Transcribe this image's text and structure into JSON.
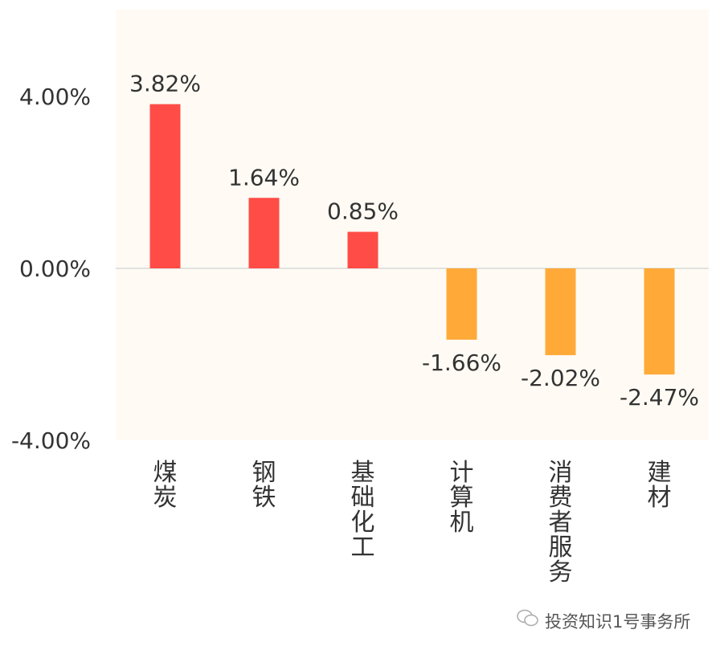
{
  "chart_data": {
    "type": "bar",
    "title": "",
    "xlabel": "",
    "ylabel": "",
    "categories": [
      "煤炭",
      "钢铁",
      "基础化工",
      "计算机",
      "消费者服务",
      "建材"
    ],
    "values": [
      3.82,
      1.64,
      0.85,
      -1.66,
      -2.02,
      -2.47
    ],
    "data_labels": [
      "3.82%",
      "1.64%",
      "0.85%",
      "-1.66%",
      "-2.02%",
      "-2.47%"
    ],
    "ylim": [
      -4,
      5.6
    ],
    "yticks": [
      4,
      0,
      -4
    ],
    "ytick_labels": [
      "4.00%",
      "0.00%",
      "-4.00%"
    ],
    "grid": false,
    "colors": {
      "positive": "#FF4C46",
      "negative": "#FFAA38",
      "plot_background": "#FFFBF4",
      "zero_line": "#D9D9D9"
    }
  },
  "watermark": {
    "text": "投资知识1号事务所",
    "icon": "wechat-icon"
  }
}
